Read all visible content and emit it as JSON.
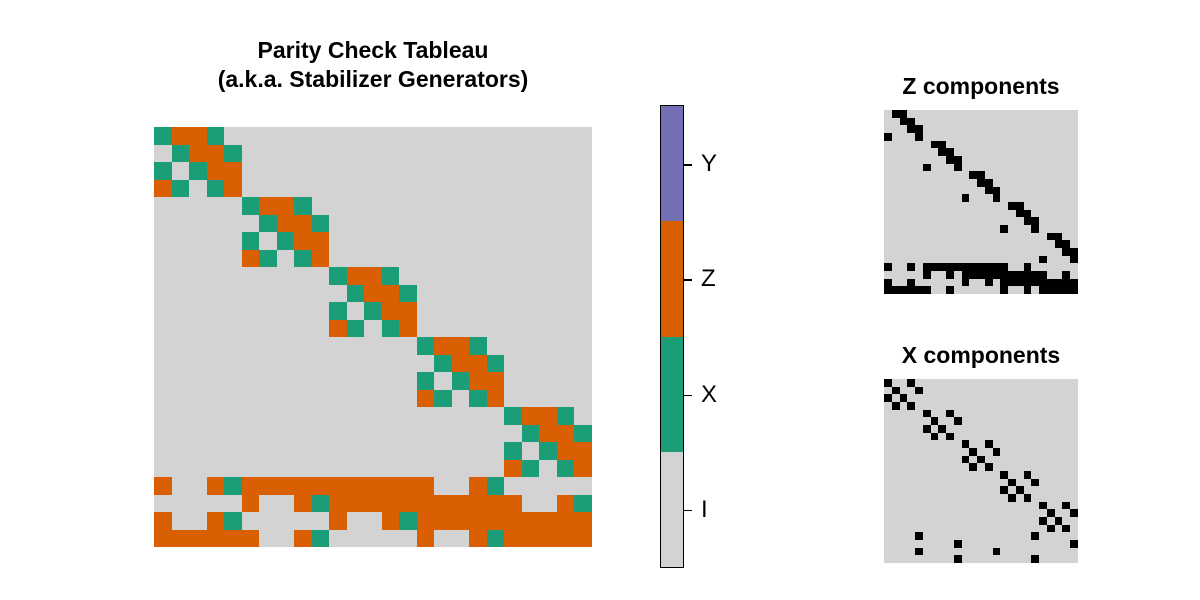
{
  "main": {
    "title_line1": "Parity Check Tableau",
    "title_line2": "(a.k.a. Stabilizer Generators)"
  },
  "colorbar": {
    "labels": [
      "Y",
      "Z",
      "X",
      "I"
    ],
    "colors": [
      "#7570b3",
      "#d95f02",
      "#1b9e77",
      "#d3d3d3"
    ]
  },
  "panels": {
    "z_title": "Z components",
    "x_title": "X components"
  },
  "colors": {
    "I": "#d3d3d3",
    "X": "#1b9e77",
    "Z": "#d95f02",
    "Y": "#7570b3",
    "mask_on": "#000000",
    "mask_off": "#d3d3d3"
  },
  "chart_data": {
    "type": "heatmap",
    "title": "Parity Check Tableau (a.k.a. Stabilizer Generators)",
    "n_rows": 24,
    "n_cols": 25,
    "legend": [
      "I",
      "X",
      "Z",
      "Y"
    ],
    "rows": [
      "XZZXIIIIIIIIIIIIIIIIIIIII",
      "IXZZXIIIIIIIIIIIIIIIIIIII",
      "XIXZZIIIIIIIIIIIIIIIIIIII",
      "ZXIXZIIIIIIIIIIIIIIIIIIII",
      "IIIIIXZZXIIIIIIIIIIIIIIII",
      "IIIIIIXZZXIIIIIIIIIIIIIII",
      "IIIIIXIXZZIIIIIIIIIIIIIII",
      "IIIIIZXIXZIIIIIIIIIIIIIII",
      "IIIIIIIIIIXZZXIIIIIIIIIII",
      "IIIIIIIIIIIXZZXIIIIIIIIII",
      "IIIIIIIIIIXIXZZIIIIIIIIII",
      "IIIIIIIIIIZXIXZIIIIIIIIII",
      "IIIIIIIIIIIIIIIXZZXIIIIII",
      "IIIIIIIIIIIIIIIIXZZXIIIII",
      "IIIIIIIIIIIIIIIXIXZZIIIII",
      "IIIIIIIIIIIIIIIZXIXZIIIII",
      "IIIIIIIIIIIIIIIIIIIIXZZXI",
      "IIIIIIIIIIIIIIIIIIIIIXZZX",
      "IIIIIIIIIIIIIIIIIIIIXIXZZ",
      "IIIIIIIIIIIIIIIIIIIIZXIXZ",
      "ZIIZXZZZZZZZZZZZIIZXIIIII",
      "IIIIIZIIZXZZZZZZZZZZZIIZX",
      "ZIIZXIIIIIZIIZXZZZZZZZZZZ",
      "ZZZZZZIIZXIIIIIZIIZXZZZZZ"
    ],
    "subplots": [
      {
        "title": "Z components",
        "type": "heatmap",
        "values": "binary mask: 1 where tableau entry is Z or Y"
      },
      {
        "title": "X components",
        "type": "heatmap",
        "values": "binary mask: 1 where tableau entry is X or Y"
      }
    ]
  }
}
